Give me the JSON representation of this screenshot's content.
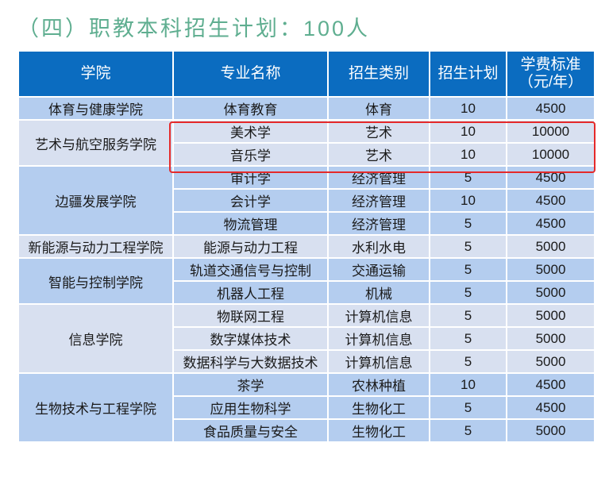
{
  "title": "（四）职教本科招生计划：100人",
  "headers": [
    "学院",
    "专业名称",
    "招生类别",
    "招生计划",
    "学费标准（元/年）"
  ],
  "groups": [
    {
      "college": "体育与健康学院",
      "rows": [
        [
          "体育教育",
          "体育",
          "10",
          "4500"
        ]
      ]
    },
    {
      "college": "艺术与航空服务学院",
      "rows": [
        [
          "美术学",
          "艺术",
          "10",
          "10000"
        ],
        [
          "音乐学",
          "艺术",
          "10",
          "10000"
        ]
      ]
    },
    {
      "college": "边疆发展学院",
      "rows": [
        [
          "审计学",
          "经济管理",
          "5",
          "4500"
        ],
        [
          "会计学",
          "经济管理",
          "10",
          "4500"
        ],
        [
          "物流管理",
          "经济管理",
          "5",
          "4500"
        ]
      ]
    },
    {
      "college": "新能源与动力工程学院",
      "rows": [
        [
          "能源与动力工程",
          "水利水电",
          "5",
          "5000"
        ]
      ]
    },
    {
      "college": "智能与控制学院",
      "rows": [
        [
          "轨道交通信号与控制",
          "交通运输",
          "5",
          "5000"
        ],
        [
          "机器人工程",
          "机械",
          "5",
          "5000"
        ]
      ]
    },
    {
      "college": "信息学院",
      "rows": [
        [
          "物联网工程",
          "计算机信息",
          "5",
          "5000"
        ],
        [
          "数字媒体技术",
          "计算机信息",
          "5",
          "5000"
        ],
        [
          "数据科学与大数据技术",
          "计算机信息",
          "5",
          "5000"
        ]
      ]
    },
    {
      "college": "生物技术与工程学院",
      "rows": [
        [
          "茶学",
          "农林种植",
          "10",
          "4500"
        ],
        [
          "应用生物科学",
          "生物化工",
          "5",
          "4500"
        ],
        [
          "食品质量与安全",
          "生物化工",
          "5",
          "5000"
        ]
      ]
    }
  ]
}
